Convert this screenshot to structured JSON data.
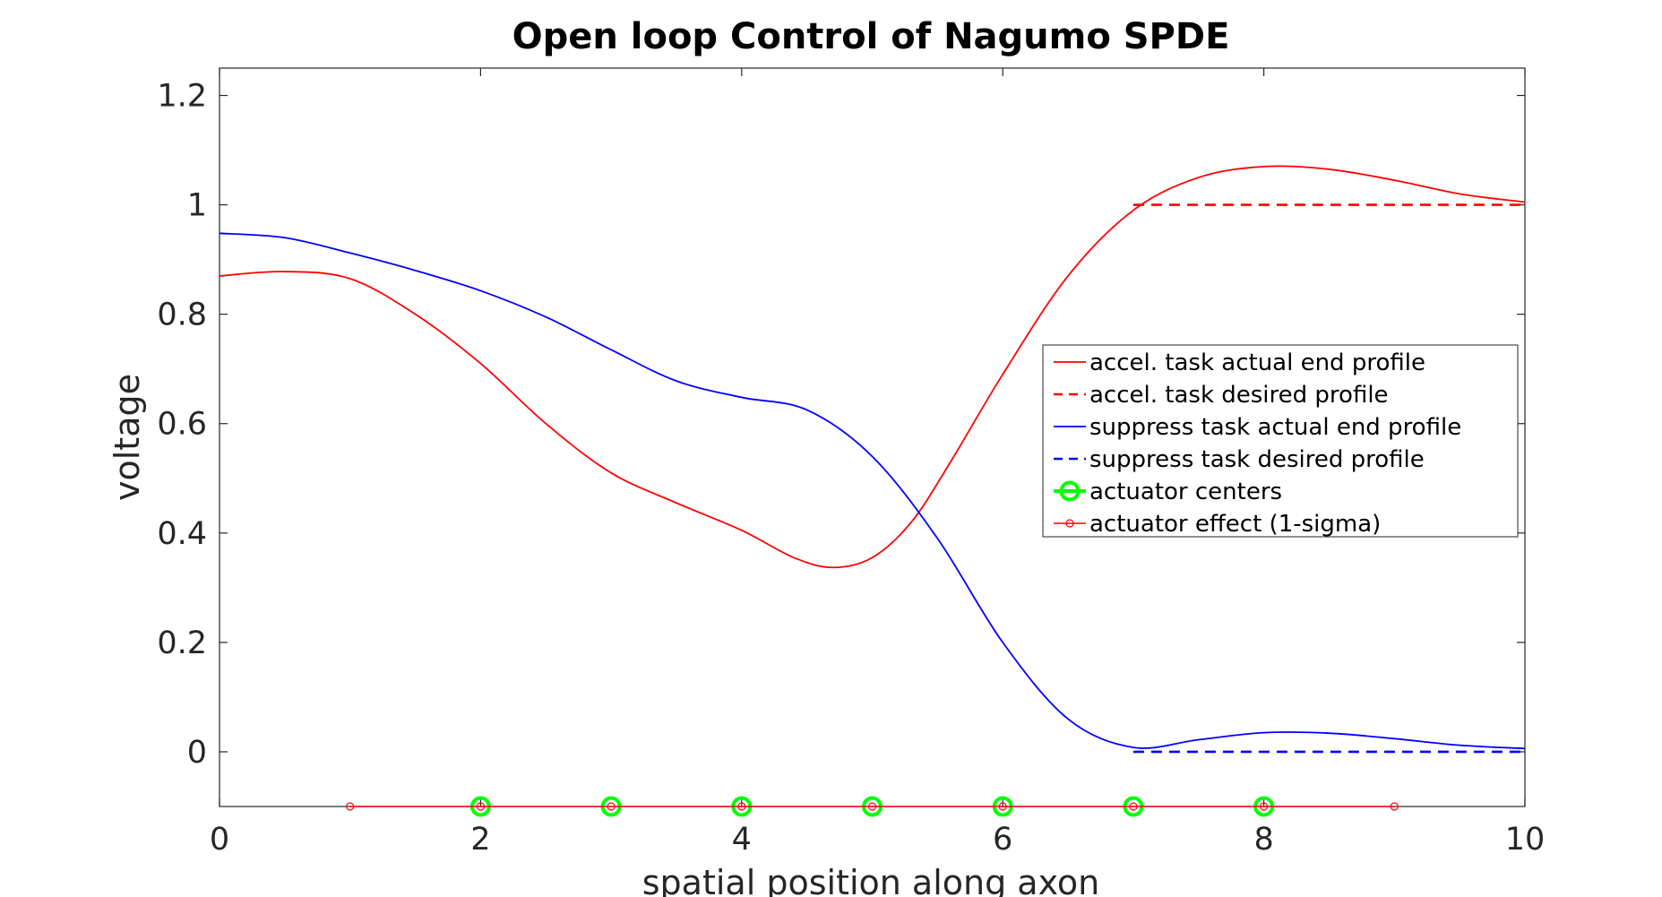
{
  "chart_data": {
    "type": "line",
    "title": "Open loop Control of Nagumo SPDE",
    "xlabel": "spatial position along axon",
    "ylabel": "voltage",
    "xlim": [
      0,
      10
    ],
    "ylim": [
      -0.1,
      1.25
    ],
    "xticks": [
      0,
      2,
      4,
      6,
      8,
      10
    ],
    "xtick_labels": [
      "0",
      "2",
      "4",
      "6",
      "8",
      "10"
    ],
    "yticks": [
      0,
      0.2,
      0.4,
      0.6,
      0.8,
      1,
      1.2
    ],
    "ytick_labels": [
      "0",
      "0.2",
      "0.4",
      "0.6",
      "0.8",
      "1",
      "1.2"
    ],
    "grid": false,
    "legend_position": "right",
    "series": [
      {
        "name": "accel. task actual end profile",
        "color": "#ff0000",
        "style": "solid",
        "x": [
          0,
          0.5,
          1,
          1.5,
          2,
          2.5,
          3,
          3.5,
          4,
          4.4,
          4.7,
          5,
          5.3,
          5.6,
          6,
          6.5,
          7,
          7.5,
          8,
          8.5,
          9,
          9.5,
          10
        ],
        "y": [
          0.87,
          0.878,
          0.865,
          0.8,
          0.71,
          0.6,
          0.51,
          0.455,
          0.405,
          0.355,
          0.337,
          0.355,
          0.42,
          0.53,
          0.69,
          0.87,
          0.99,
          1.05,
          1.07,
          1.065,
          1.045,
          1.02,
          1.005
        ]
      },
      {
        "name": "accel. task desired profile",
        "color": "#ff0000",
        "style": "dashed",
        "x": [
          7,
          10
        ],
        "y": [
          1,
          1
        ]
      },
      {
        "name": "suppress task actual end profile",
        "color": "#0000ff",
        "style": "solid",
        "x": [
          0,
          0.5,
          1,
          1.5,
          2,
          2.5,
          3,
          3.5,
          4,
          4.5,
          5,
          5.5,
          6,
          6.5,
          7,
          7.5,
          8,
          8.5,
          9,
          9.5,
          10
        ],
        "y": [
          0.948,
          0.94,
          0.912,
          0.88,
          0.843,
          0.795,
          0.735,
          0.678,
          0.648,
          0.625,
          0.54,
          0.39,
          0.2,
          0.06,
          0.008,
          0.022,
          0.035,
          0.034,
          0.024,
          0.012,
          0.006
        ]
      },
      {
        "name": "suppress task desired profile",
        "color": "#0000ff",
        "style": "dashed",
        "x": [
          7,
          10
        ],
        "y": [
          0,
          0
        ]
      },
      {
        "name": "actuator centers",
        "color": "#00ff00",
        "style": "markers",
        "x": [
          2,
          3,
          4,
          5,
          6,
          7,
          8
        ],
        "y": [
          -0.1,
          -0.1,
          -0.1,
          -0.1,
          -0.1,
          -0.1,
          -0.1
        ]
      },
      {
        "name": "actuator effect (1-sigma)",
        "color": "#ff0000",
        "style": "line-markers",
        "x": [
          1,
          2,
          3,
          4,
          5,
          6,
          7,
          8,
          9
        ],
        "y": [
          -0.1,
          -0.1,
          -0.1,
          -0.1,
          -0.1,
          -0.1,
          -0.1,
          -0.1,
          -0.1
        ]
      }
    ]
  }
}
